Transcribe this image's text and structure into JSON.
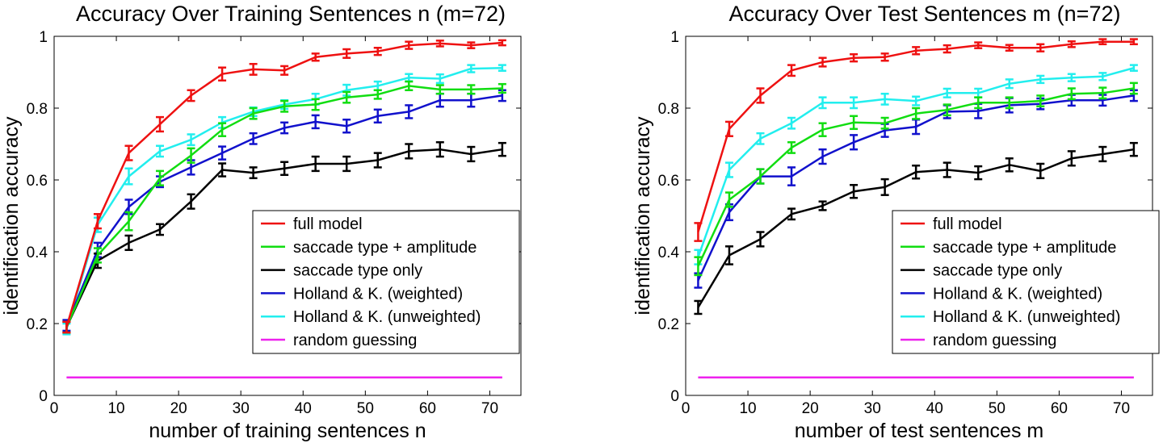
{
  "chart_data": [
    {
      "type": "line",
      "title": "Accuracy Over Training Sentences n (m=72)",
      "xlabel": "number of training sentences n",
      "ylabel": "identification accuracy",
      "xlim": [
        0,
        75
      ],
      "ylim": [
        0,
        1
      ],
      "xticks": [
        0,
        10,
        20,
        30,
        40,
        50,
        60,
        70
      ],
      "xtick_labels": [
        "0",
        "10",
        "20",
        "30",
        "40",
        "50",
        "60",
        "70"
      ],
      "yticks": [
        0,
        0.2,
        0.4,
        0.6,
        0.8,
        1
      ],
      "ytick_labels": [
        "0",
        "0.2",
        "0.4",
        "0.6",
        "0.8",
        "1"
      ],
      "grid": false,
      "legend_position": "lower-right",
      "x": [
        2,
        7,
        12,
        17,
        22,
        27,
        32,
        37,
        42,
        47,
        52,
        57,
        62,
        67,
        72
      ],
      "series": [
        {
          "name": "full model",
          "color": "#ee1111",
          "values": [
            0.19,
            0.485,
            0.675,
            0.755,
            0.835,
            0.895,
            0.908,
            0.905,
            0.942,
            0.952,
            0.958,
            0.975,
            0.98,
            0.975,
            0.982
          ],
          "err": [
            0.015,
            0.02,
            0.02,
            0.02,
            0.015,
            0.018,
            0.015,
            0.012,
            0.01,
            0.012,
            0.01,
            0.01,
            0.008,
            0.008,
            0.007
          ]
        },
        {
          "name": "saccade type + amplitude",
          "color": "#11dd11",
          "values": [
            0.19,
            0.39,
            0.485,
            0.605,
            0.668,
            0.74,
            0.785,
            0.805,
            0.81,
            0.83,
            0.838,
            0.862,
            0.852,
            0.852,
            0.855
          ],
          "err": [
            0.015,
            0.02,
            0.025,
            0.02,
            0.02,
            0.018,
            0.015,
            0.015,
            0.015,
            0.015,
            0.012,
            0.012,
            0.012,
            0.012,
            0.012
          ]
        },
        {
          "name": "saccade type only",
          "color": "#000000",
          "values": [
            0.19,
            0.375,
            0.425,
            0.462,
            0.54,
            0.628,
            0.62,
            0.632,
            0.645,
            0.645,
            0.655,
            0.68,
            0.685,
            0.672,
            0.685
          ],
          "err": [
            0.015,
            0.02,
            0.02,
            0.015,
            0.02,
            0.018,
            0.015,
            0.018,
            0.02,
            0.02,
            0.02,
            0.02,
            0.02,
            0.02,
            0.018
          ]
        },
        {
          "name": "Holland & K. (weighted)",
          "color": "#1111cc",
          "values": [
            0.195,
            0.405,
            0.525,
            0.595,
            0.635,
            0.675,
            0.715,
            0.745,
            0.762,
            0.75,
            0.778,
            0.79,
            0.822,
            0.822,
            0.835
          ],
          "err": [
            0.015,
            0.02,
            0.02,
            0.015,
            0.02,
            0.018,
            0.015,
            0.015,
            0.018,
            0.018,
            0.018,
            0.018,
            0.018,
            0.018,
            0.015
          ]
        },
        {
          "name": "Holland & K. (unweighted)",
          "color": "#22eeee",
          "values": [
            0.185,
            0.475,
            0.61,
            0.68,
            0.712,
            0.76,
            0.79,
            0.81,
            0.825,
            0.85,
            0.862,
            0.885,
            0.882,
            0.91,
            0.912
          ],
          "err": [
            0.015,
            0.02,
            0.022,
            0.015,
            0.015,
            0.015,
            0.012,
            0.012,
            0.015,
            0.015,
            0.012,
            0.01,
            0.012,
            0.01,
            0.008
          ]
        },
        {
          "name": "random guessing",
          "color": "#ee22ee",
          "values": [
            0.05,
            0.05,
            0.05,
            0.05,
            0.05,
            0.05,
            0.05,
            0.05,
            0.05,
            0.05,
            0.05,
            0.05,
            0.05,
            0.05,
            0.05
          ],
          "err": null
        }
      ]
    },
    {
      "type": "line",
      "title": "Accuracy Over Test Sentences m (n=72)",
      "xlabel": "number of test sentences m",
      "ylabel": "identification accuracy",
      "xlim": [
        0,
        75
      ],
      "ylim": [
        0,
        1
      ],
      "xticks": [
        0,
        10,
        20,
        30,
        40,
        50,
        60,
        70
      ],
      "xtick_labels": [
        "0",
        "10",
        "20",
        "30",
        "40",
        "50",
        "60",
        "70"
      ],
      "yticks": [
        0,
        0.2,
        0.4,
        0.6,
        0.8,
        1
      ],
      "ytick_labels": [
        "0",
        "0.2",
        "0.4",
        "0.6",
        "0.8",
        "1"
      ],
      "grid": false,
      "legend_position": "lower-right",
      "x": [
        2,
        7,
        12,
        17,
        22,
        27,
        32,
        37,
        42,
        47,
        52,
        57,
        62,
        67,
        72
      ],
      "series": [
        {
          "name": "full model",
          "color": "#ee1111",
          "values": [
            0.455,
            0.742,
            0.835,
            0.905,
            0.928,
            0.94,
            0.942,
            0.96,
            0.965,
            0.975,
            0.968,
            0.968,
            0.978,
            0.985,
            0.985
          ],
          "err": [
            0.025,
            0.02,
            0.02,
            0.015,
            0.012,
            0.01,
            0.01,
            0.01,
            0.01,
            0.008,
            0.008,
            0.01,
            0.008,
            0.007,
            0.007
          ]
        },
        {
          "name": "saccade type + amplitude",
          "color": "#11dd11",
          "values": [
            0.36,
            0.545,
            0.61,
            0.69,
            0.74,
            0.76,
            0.758,
            0.785,
            0.795,
            0.815,
            0.815,
            0.82,
            0.84,
            0.842,
            0.855
          ],
          "err": [
            0.025,
            0.02,
            0.02,
            0.015,
            0.018,
            0.018,
            0.015,
            0.015,
            0.015,
            0.015,
            0.015,
            0.015,
            0.015,
            0.015,
            0.015
          ]
        },
        {
          "name": "saccade type only",
          "color": "#000000",
          "values": [
            0.245,
            0.39,
            0.435,
            0.505,
            0.528,
            0.568,
            0.58,
            0.622,
            0.628,
            0.62,
            0.642,
            0.625,
            0.66,
            0.672,
            0.685
          ],
          "err": [
            0.018,
            0.025,
            0.02,
            0.015,
            0.012,
            0.018,
            0.022,
            0.018,
            0.02,
            0.018,
            0.018,
            0.02,
            0.02,
            0.02,
            0.018
          ]
        },
        {
          "name": "Holland & K. (weighted)",
          "color": "#1111cc",
          "values": [
            0.32,
            0.51,
            0.61,
            0.61,
            0.665,
            0.705,
            0.738,
            0.748,
            0.79,
            0.792,
            0.808,
            0.812,
            0.822,
            0.822,
            0.835
          ],
          "err": [
            0.02,
            0.022,
            0.02,
            0.025,
            0.02,
            0.02,
            0.018,
            0.02,
            0.018,
            0.02,
            0.02,
            0.015,
            0.015,
            0.015,
            0.015
          ]
        },
        {
          "name": "Holland & K. (unweighted)",
          "color": "#22eeee",
          "values": [
            0.385,
            0.628,
            0.715,
            0.758,
            0.815,
            0.815,
            0.825,
            0.82,
            0.842,
            0.842,
            0.868,
            0.88,
            0.885,
            0.888,
            0.912
          ],
          "err": [
            0.02,
            0.02,
            0.015,
            0.015,
            0.015,
            0.015,
            0.015,
            0.012,
            0.012,
            0.012,
            0.012,
            0.01,
            0.01,
            0.01,
            0.008
          ]
        },
        {
          "name": "random guessing",
          "color": "#ee22ee",
          "values": [
            0.05,
            0.05,
            0.05,
            0.05,
            0.05,
            0.05,
            0.05,
            0.05,
            0.05,
            0.05,
            0.05,
            0.05,
            0.05,
            0.05,
            0.05
          ],
          "err": null
        }
      ]
    }
  ]
}
